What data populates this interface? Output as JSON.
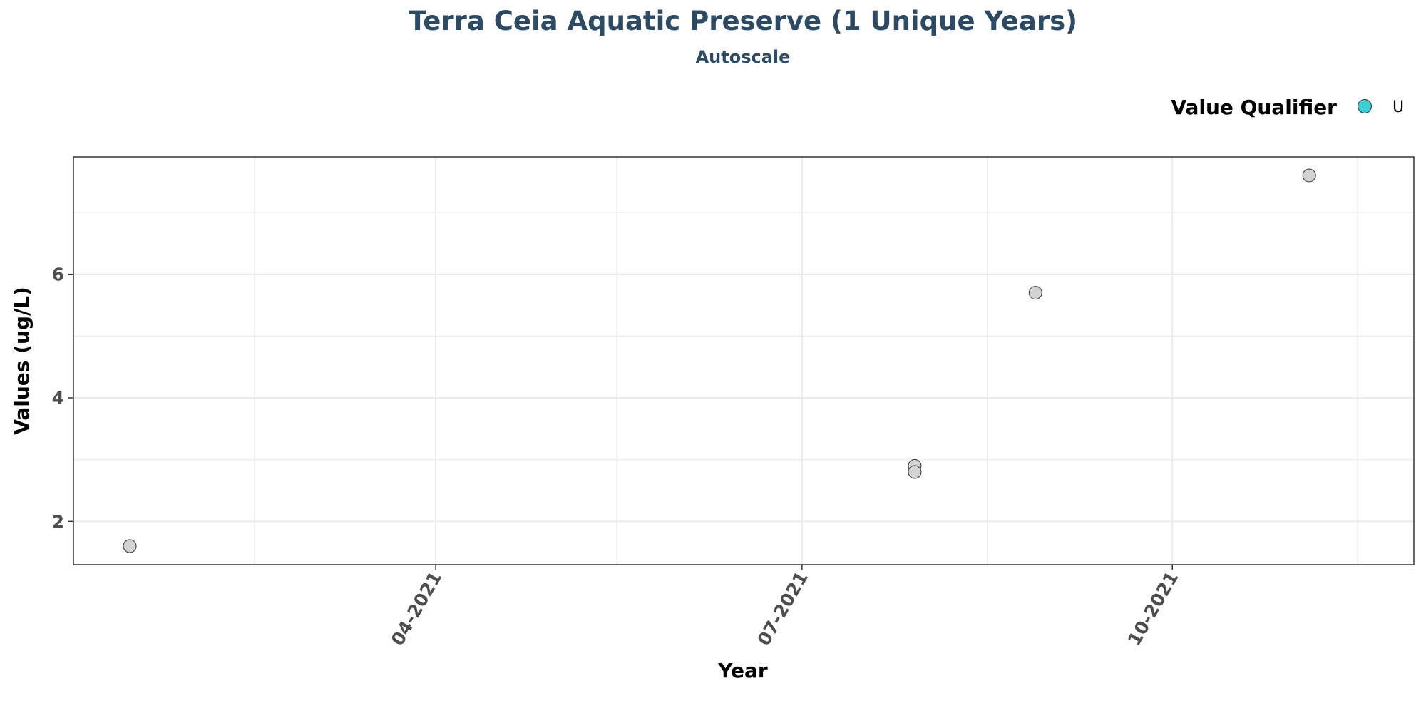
{
  "chart_data": {
    "type": "scatter",
    "title": "Terra Ceia Aquatic Preserve (1 Unique Years)",
    "subtitle": "Autoscale",
    "xlabel": "Year",
    "ylabel": "Values (ug/L)",
    "x_ticks": [
      "2021-04-01",
      "2021-07-01",
      "2021-10-01"
    ],
    "x_tick_labels": [
      "04-2021",
      "07-2021",
      "10-2021"
    ],
    "x_minor_gridlines": [
      "2021-02-15",
      "2021-05-16",
      "2021-08-16",
      "2021-11-16"
    ],
    "xlim": [
      "2021-01-01",
      "2021-11-30"
    ],
    "y_ticks": [
      2,
      4,
      6
    ],
    "ylim": [
      1.3,
      7.9
    ],
    "grid": true,
    "legend": {
      "title": "Value Qualifier",
      "position": "top-right",
      "entries": [
        {
          "label": "U",
          "color": "#3ecfd4"
        }
      ]
    },
    "colors": {
      "title": "#2e4a62",
      "point_fill": "#d3d3d3",
      "point_stroke": "#333333",
      "grid": "#ebebeb"
    },
    "points": [
      {
        "x": "2021-01-15",
        "y": 1.6
      },
      {
        "x": "2021-07-29",
        "y": 2.9
      },
      {
        "x": "2021-07-29",
        "y": 2.8
      },
      {
        "x": "2021-08-28",
        "y": 5.7
      },
      {
        "x": "2021-11-04",
        "y": 7.6
      }
    ]
  }
}
